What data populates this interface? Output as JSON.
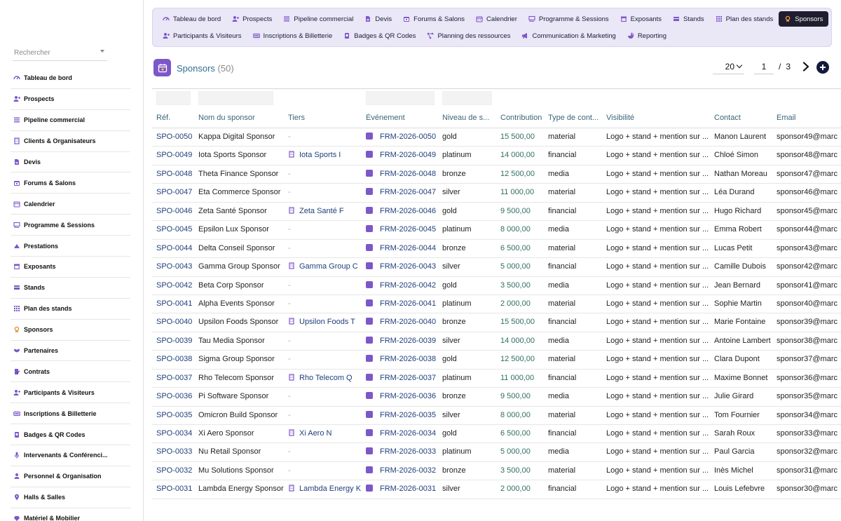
{
  "sidebar": {
    "search_placeholder": "Rechercher",
    "items": [
      {
        "label": "Tableau de bord",
        "icon": "dashboard-icon"
      },
      {
        "label": "Prospects",
        "icon": "user-plus-icon"
      },
      {
        "label": "Pipeline commercial",
        "icon": "pipeline-icon"
      },
      {
        "label": "Clients & Organisateurs",
        "icon": "building-icon"
      },
      {
        "label": "Devis",
        "icon": "document-icon"
      },
      {
        "label": "Forums & Salons",
        "icon": "calendar-star-icon"
      },
      {
        "label": "Calendrier",
        "icon": "calendar-icon"
      },
      {
        "label": "Programme & Sessions",
        "icon": "presentation-icon"
      },
      {
        "label": "Prestations",
        "icon": "service-icon"
      },
      {
        "label": "Exposants",
        "icon": "store-icon"
      },
      {
        "label": "Stands",
        "icon": "stand-icon"
      },
      {
        "label": "Plan des stands",
        "icon": "grid-icon"
      },
      {
        "label": "Sponsors",
        "icon": "medal-icon"
      },
      {
        "label": "Partenaires",
        "icon": "handshake-icon"
      },
      {
        "label": "Contrats",
        "icon": "contract-icon"
      },
      {
        "label": "Participants & Visiteurs",
        "icon": "user-plus-icon"
      },
      {
        "label": "Inscriptions & Billetterie",
        "icon": "ticket-icon"
      },
      {
        "label": "Badges & QR Codes",
        "icon": "badge-icon"
      },
      {
        "label": "Intervenants & Conférenci...",
        "icon": "microphone-icon"
      },
      {
        "label": "Personnel & Organisation",
        "icon": "user-icon"
      },
      {
        "label": "Halls & Salles",
        "icon": "map-pin-icon"
      },
      {
        "label": "Matériel & Mobilier",
        "icon": "box-icon"
      }
    ]
  },
  "topnav": {
    "row1": [
      {
        "label": "Tableau de bord",
        "icon": "dashboard-icon",
        "active": false
      },
      {
        "label": "Prospects",
        "icon": "user-plus-icon",
        "active": false
      },
      {
        "label": "Pipeline commercial",
        "icon": "pipeline-icon",
        "active": false
      },
      {
        "label": "Devis",
        "icon": "document-icon",
        "active": false
      },
      {
        "label": "Forums & Salons",
        "icon": "calendar-star-icon",
        "active": false
      },
      {
        "label": "Calendrier",
        "icon": "calendar-icon",
        "active": false
      },
      {
        "label": "Programme & Sessions",
        "icon": "presentation-icon",
        "active": false
      },
      {
        "label": "Exposants",
        "icon": "store-icon",
        "active": false
      },
      {
        "label": "Stands",
        "icon": "stand-icon",
        "active": false
      },
      {
        "label": "Plan des stands",
        "icon": "grid-icon",
        "active": false
      },
      {
        "label": "Sponsors",
        "icon": "medal-icon",
        "active": true
      }
    ],
    "row2": [
      {
        "label": "Participants & Visiteurs",
        "icon": "user-plus-icon",
        "active": false
      },
      {
        "label": "Inscriptions & Billetterie",
        "icon": "ticket-icon",
        "active": false
      },
      {
        "label": "Badges & QR Codes",
        "icon": "badge-icon",
        "active": false
      },
      {
        "label": "Planning des ressources",
        "icon": "network-icon",
        "active": false
      },
      {
        "label": "Communication & Marketing",
        "icon": "megaphone-icon",
        "active": false
      },
      {
        "label": "Reporting",
        "icon": "pie-chart-icon",
        "active": false
      }
    ]
  },
  "header": {
    "title": "Sponsors",
    "count": "(50)",
    "per_page": "20",
    "page": "1",
    "separator": "/",
    "total_pages": "3"
  },
  "table": {
    "columns": [
      "Réf.",
      "Nom du sponsor",
      "Tiers",
      "Événement",
      "Niveau de s...",
      "Contribution",
      "Type de cont...",
      "Visibilité",
      "Contact",
      "Email"
    ],
    "rows": [
      {
        "ref": "SPO-0050",
        "name": "Kappa Digital Sponsor",
        "tier": "-",
        "event": "FRM-2026-0050",
        "level": "gold",
        "amount": "15 500,00",
        "type": "material",
        "visibility": "Logo + stand + mention sur ...",
        "contact": "Manon Laurent",
        "email": "sponsor49@marc"
      },
      {
        "ref": "SPO-0049",
        "name": "Iota Sports Sponsor",
        "tier": "Iota Sports I",
        "event": "FRM-2026-0049",
        "level": "platinum",
        "amount": "14 000,00",
        "type": "financial",
        "visibility": "Logo + stand + mention sur ...",
        "contact": "Chloé Simon",
        "email": "sponsor48@marc"
      },
      {
        "ref": "SPO-0048",
        "name": "Theta Finance Sponsor",
        "tier": "-",
        "event": "FRM-2026-0048",
        "level": "bronze",
        "amount": "12 500,00",
        "type": "media",
        "visibility": "Logo + stand + mention sur ...",
        "contact": "Nathan Moreau",
        "email": "sponsor47@marc"
      },
      {
        "ref": "SPO-0047",
        "name": "Eta Commerce Sponsor",
        "tier": "-",
        "event": "FRM-2026-0047",
        "level": "silver",
        "amount": "11 000,00",
        "type": "material",
        "visibility": "Logo + stand + mention sur ...",
        "contact": "Léa Durand",
        "email": "sponsor46@marc"
      },
      {
        "ref": "SPO-0046",
        "name": "Zeta Santé Sponsor",
        "tier": "Zeta Santé F",
        "event": "FRM-2026-0046",
        "level": "gold",
        "amount": "9 500,00",
        "type": "financial",
        "visibility": "Logo + stand + mention sur ...",
        "contact": "Hugo Richard",
        "email": "sponsor45@marc"
      },
      {
        "ref": "SPO-0045",
        "name": "Epsilon Lux Sponsor",
        "tier": "-",
        "event": "FRM-2026-0045",
        "level": "platinum",
        "amount": "8 000,00",
        "type": "media",
        "visibility": "Logo + stand + mention sur ...",
        "contact": "Emma Robert",
        "email": "sponsor44@marc"
      },
      {
        "ref": "SPO-0044",
        "name": "Delta Conseil Sponsor",
        "tier": "-",
        "event": "FRM-2026-0044",
        "level": "bronze",
        "amount": "6 500,00",
        "type": "material",
        "visibility": "Logo + stand + mention sur ...",
        "contact": "Lucas Petit",
        "email": "sponsor43@marc"
      },
      {
        "ref": "SPO-0043",
        "name": "Gamma Group Sponsor",
        "tier": "Gamma Group C",
        "event": "FRM-2026-0043",
        "level": "silver",
        "amount": "5 000,00",
        "type": "financial",
        "visibility": "Logo + stand + mention sur ...",
        "contact": "Camille Dubois",
        "email": "sponsor42@marc"
      },
      {
        "ref": "SPO-0042",
        "name": "Beta Corp Sponsor",
        "tier": "-",
        "event": "FRM-2026-0042",
        "level": "gold",
        "amount": "3 500,00",
        "type": "media",
        "visibility": "Logo + stand + mention sur ...",
        "contact": "Jean Bernard",
        "email": "sponsor41@marc"
      },
      {
        "ref": "SPO-0041",
        "name": "Alpha Events Sponsor",
        "tier": "-",
        "event": "FRM-2026-0041",
        "level": "platinum",
        "amount": "2 000,00",
        "type": "material",
        "visibility": "Logo + stand + mention sur ...",
        "contact": "Sophie Martin",
        "email": "sponsor40@marc"
      },
      {
        "ref": "SPO-0040",
        "name": "Upsilon Foods Sponsor",
        "tier": "Upsilon Foods T",
        "event": "FRM-2026-0040",
        "level": "bronze",
        "amount": "15 500,00",
        "type": "financial",
        "visibility": "Logo + stand + mention sur ...",
        "contact": "Marie Fontaine",
        "email": "sponsor39@marc"
      },
      {
        "ref": "SPO-0039",
        "name": "Tau Media Sponsor",
        "tier": "-",
        "event": "FRM-2026-0039",
        "level": "silver",
        "amount": "14 000,00",
        "type": "media",
        "visibility": "Logo + stand + mention sur ...",
        "contact": "Antoine Lambert",
        "email": "sponsor38@marc"
      },
      {
        "ref": "SPO-0038",
        "name": "Sigma Group Sponsor",
        "tier": "-",
        "event": "FRM-2026-0038",
        "level": "gold",
        "amount": "12 500,00",
        "type": "material",
        "visibility": "Logo + stand + mention sur ...",
        "contact": "Clara Dupont",
        "email": "sponsor37@marc"
      },
      {
        "ref": "SPO-0037",
        "name": "Rho Telecom Sponsor",
        "tier": "Rho Telecom Q",
        "event": "FRM-2026-0037",
        "level": "platinum",
        "amount": "11 000,00",
        "type": "financial",
        "visibility": "Logo + stand + mention sur ...",
        "contact": "Maxime Bonnet",
        "email": "sponsor36@marc"
      },
      {
        "ref": "SPO-0036",
        "name": "Pi Software Sponsor",
        "tier": "-",
        "event": "FRM-2026-0036",
        "level": "bronze",
        "amount": "9 500,00",
        "type": "media",
        "visibility": "Logo + stand + mention sur ...",
        "contact": "Julie Girard",
        "email": "sponsor35@marc"
      },
      {
        "ref": "SPO-0035",
        "name": "Omicron Build Sponsor",
        "tier": "-",
        "event": "FRM-2026-0035",
        "level": "silver",
        "amount": "8 000,00",
        "type": "material",
        "visibility": "Logo + stand + mention sur ...",
        "contact": "Tom Fournier",
        "email": "sponsor34@marc"
      },
      {
        "ref": "SPO-0034",
        "name": "Xi Aero Sponsor",
        "tier": "Xi Aero N",
        "event": "FRM-2026-0034",
        "level": "gold",
        "amount": "6 500,00",
        "type": "financial",
        "visibility": "Logo + stand + mention sur ...",
        "contact": "Sarah Roux",
        "email": "sponsor33@marc"
      },
      {
        "ref": "SPO-0033",
        "name": "Nu Retail Sponsor",
        "tier": "-",
        "event": "FRM-2026-0033",
        "level": "platinum",
        "amount": "5 000,00",
        "type": "media",
        "visibility": "Logo + stand + mention sur ...",
        "contact": "Paul Garcia",
        "email": "sponsor32@marc"
      },
      {
        "ref": "SPO-0032",
        "name": "Mu Solutions Sponsor",
        "tier": "-",
        "event": "FRM-2026-0032",
        "level": "bronze",
        "amount": "3 500,00",
        "type": "material",
        "visibility": "Logo + stand + mention sur ...",
        "contact": "Inès Michel",
        "email": "sponsor31@marc"
      },
      {
        "ref": "SPO-0031",
        "name": "Lambda Energy Sponsor",
        "tier": "Lambda Energy K",
        "event": "FRM-2026-0031",
        "level": "silver",
        "amount": "2 000,00",
        "type": "financial",
        "visibility": "Logo + stand + mention sur ...",
        "contact": "Louis Lefebvre",
        "email": "sponsor30@marc"
      }
    ]
  },
  "colors": {
    "accent": "#7c57c9",
    "link": "#1f3f7a",
    "amount": "#2f6f62",
    "header_text": "#3a6578",
    "active_tab_bg": "#1e1e2e",
    "topnav_bg": "#eae7f6"
  }
}
